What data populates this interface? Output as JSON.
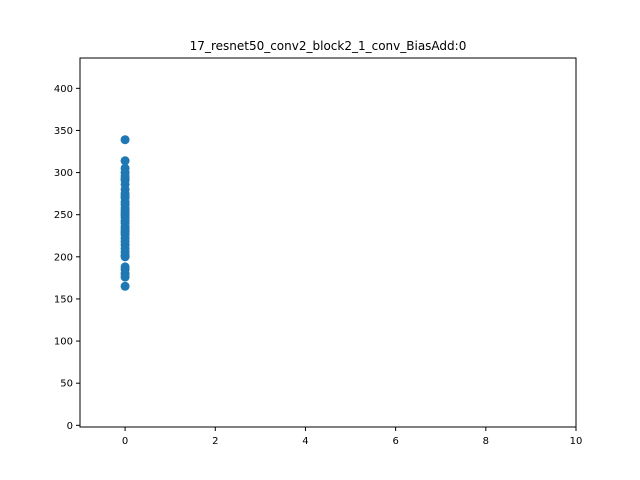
{
  "chart_data": {
    "type": "scatter",
    "title": "17_resnet50_conv2_block2_1_conv_BiasAdd:0",
    "xlabel": "",
    "ylabel": "",
    "xlim": [
      -1,
      10
    ],
    "ylim": [
      -2,
      436
    ],
    "xticks": [
      0,
      2,
      4,
      6,
      8,
      10
    ],
    "yticks": [
      0,
      50,
      100,
      150,
      200,
      250,
      300,
      350,
      400
    ],
    "grid": false,
    "legend": "none",
    "colors": {
      "marker": "#1f77b4",
      "axis": "#000000",
      "background": "#ffffff"
    },
    "series": [
      {
        "x": [
          0,
          0,
          0,
          0,
          0,
          0,
          0,
          0,
          0,
          0,
          0,
          0,
          0,
          0,
          0,
          0,
          0,
          0,
          0,
          0,
          0,
          0,
          0,
          0,
          0,
          0,
          0,
          0,
          0,
          0,
          0,
          0,
          0,
          0,
          0,
          0,
          0,
          0
        ],
        "y": [
          339,
          314,
          305,
          300,
          293,
          291,
          286,
          280,
          275,
          270,
          265,
          262,
          258,
          255,
          250,
          247,
          243,
          240,
          236,
          233,
          230,
          226,
          222,
          218,
          214,
          210,
          206,
          202,
          200,
          188,
          185,
          180,
          176,
          165,
          296,
          272,
          252,
          228
        ]
      }
    ]
  }
}
